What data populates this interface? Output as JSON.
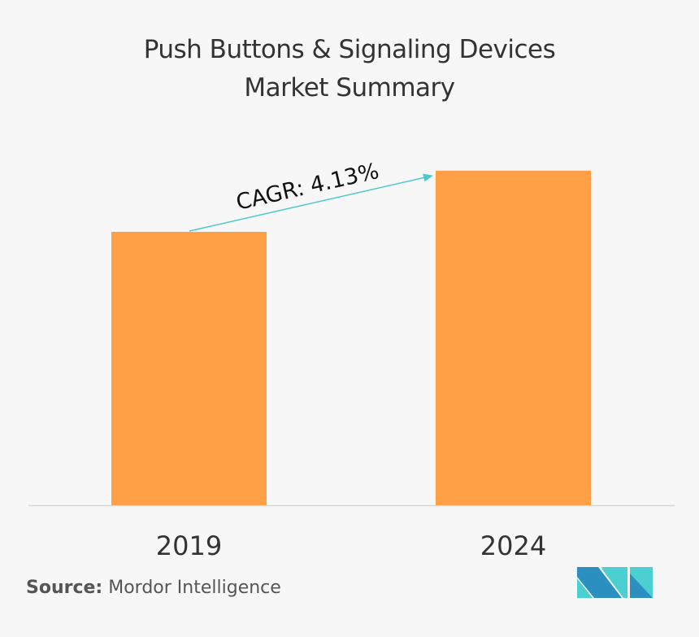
{
  "chart_data": {
    "type": "bar",
    "title": "Push Buttons & Signaling Devices Market Summary",
    "title_lines": [
      "Push Buttons & Signaling Devices",
      "Market Summary"
    ],
    "categories": [
      "2019",
      "2024"
    ],
    "values": [
      1.0,
      1.224
    ],
    "ylim": [
      0,
      1.3
    ],
    "grid": false,
    "bar_color": "#ffa047",
    "annotation": {
      "text": "CAGR: 4.13%",
      "arrow_color": "#4cc9cc"
    },
    "xlabel": "",
    "ylabel": ""
  },
  "source": {
    "label": "Source:",
    "text": "Mordor Intelligence"
  },
  "logo": {
    "colors": [
      "#2b8fbf",
      "#4ccfd0"
    ]
  }
}
